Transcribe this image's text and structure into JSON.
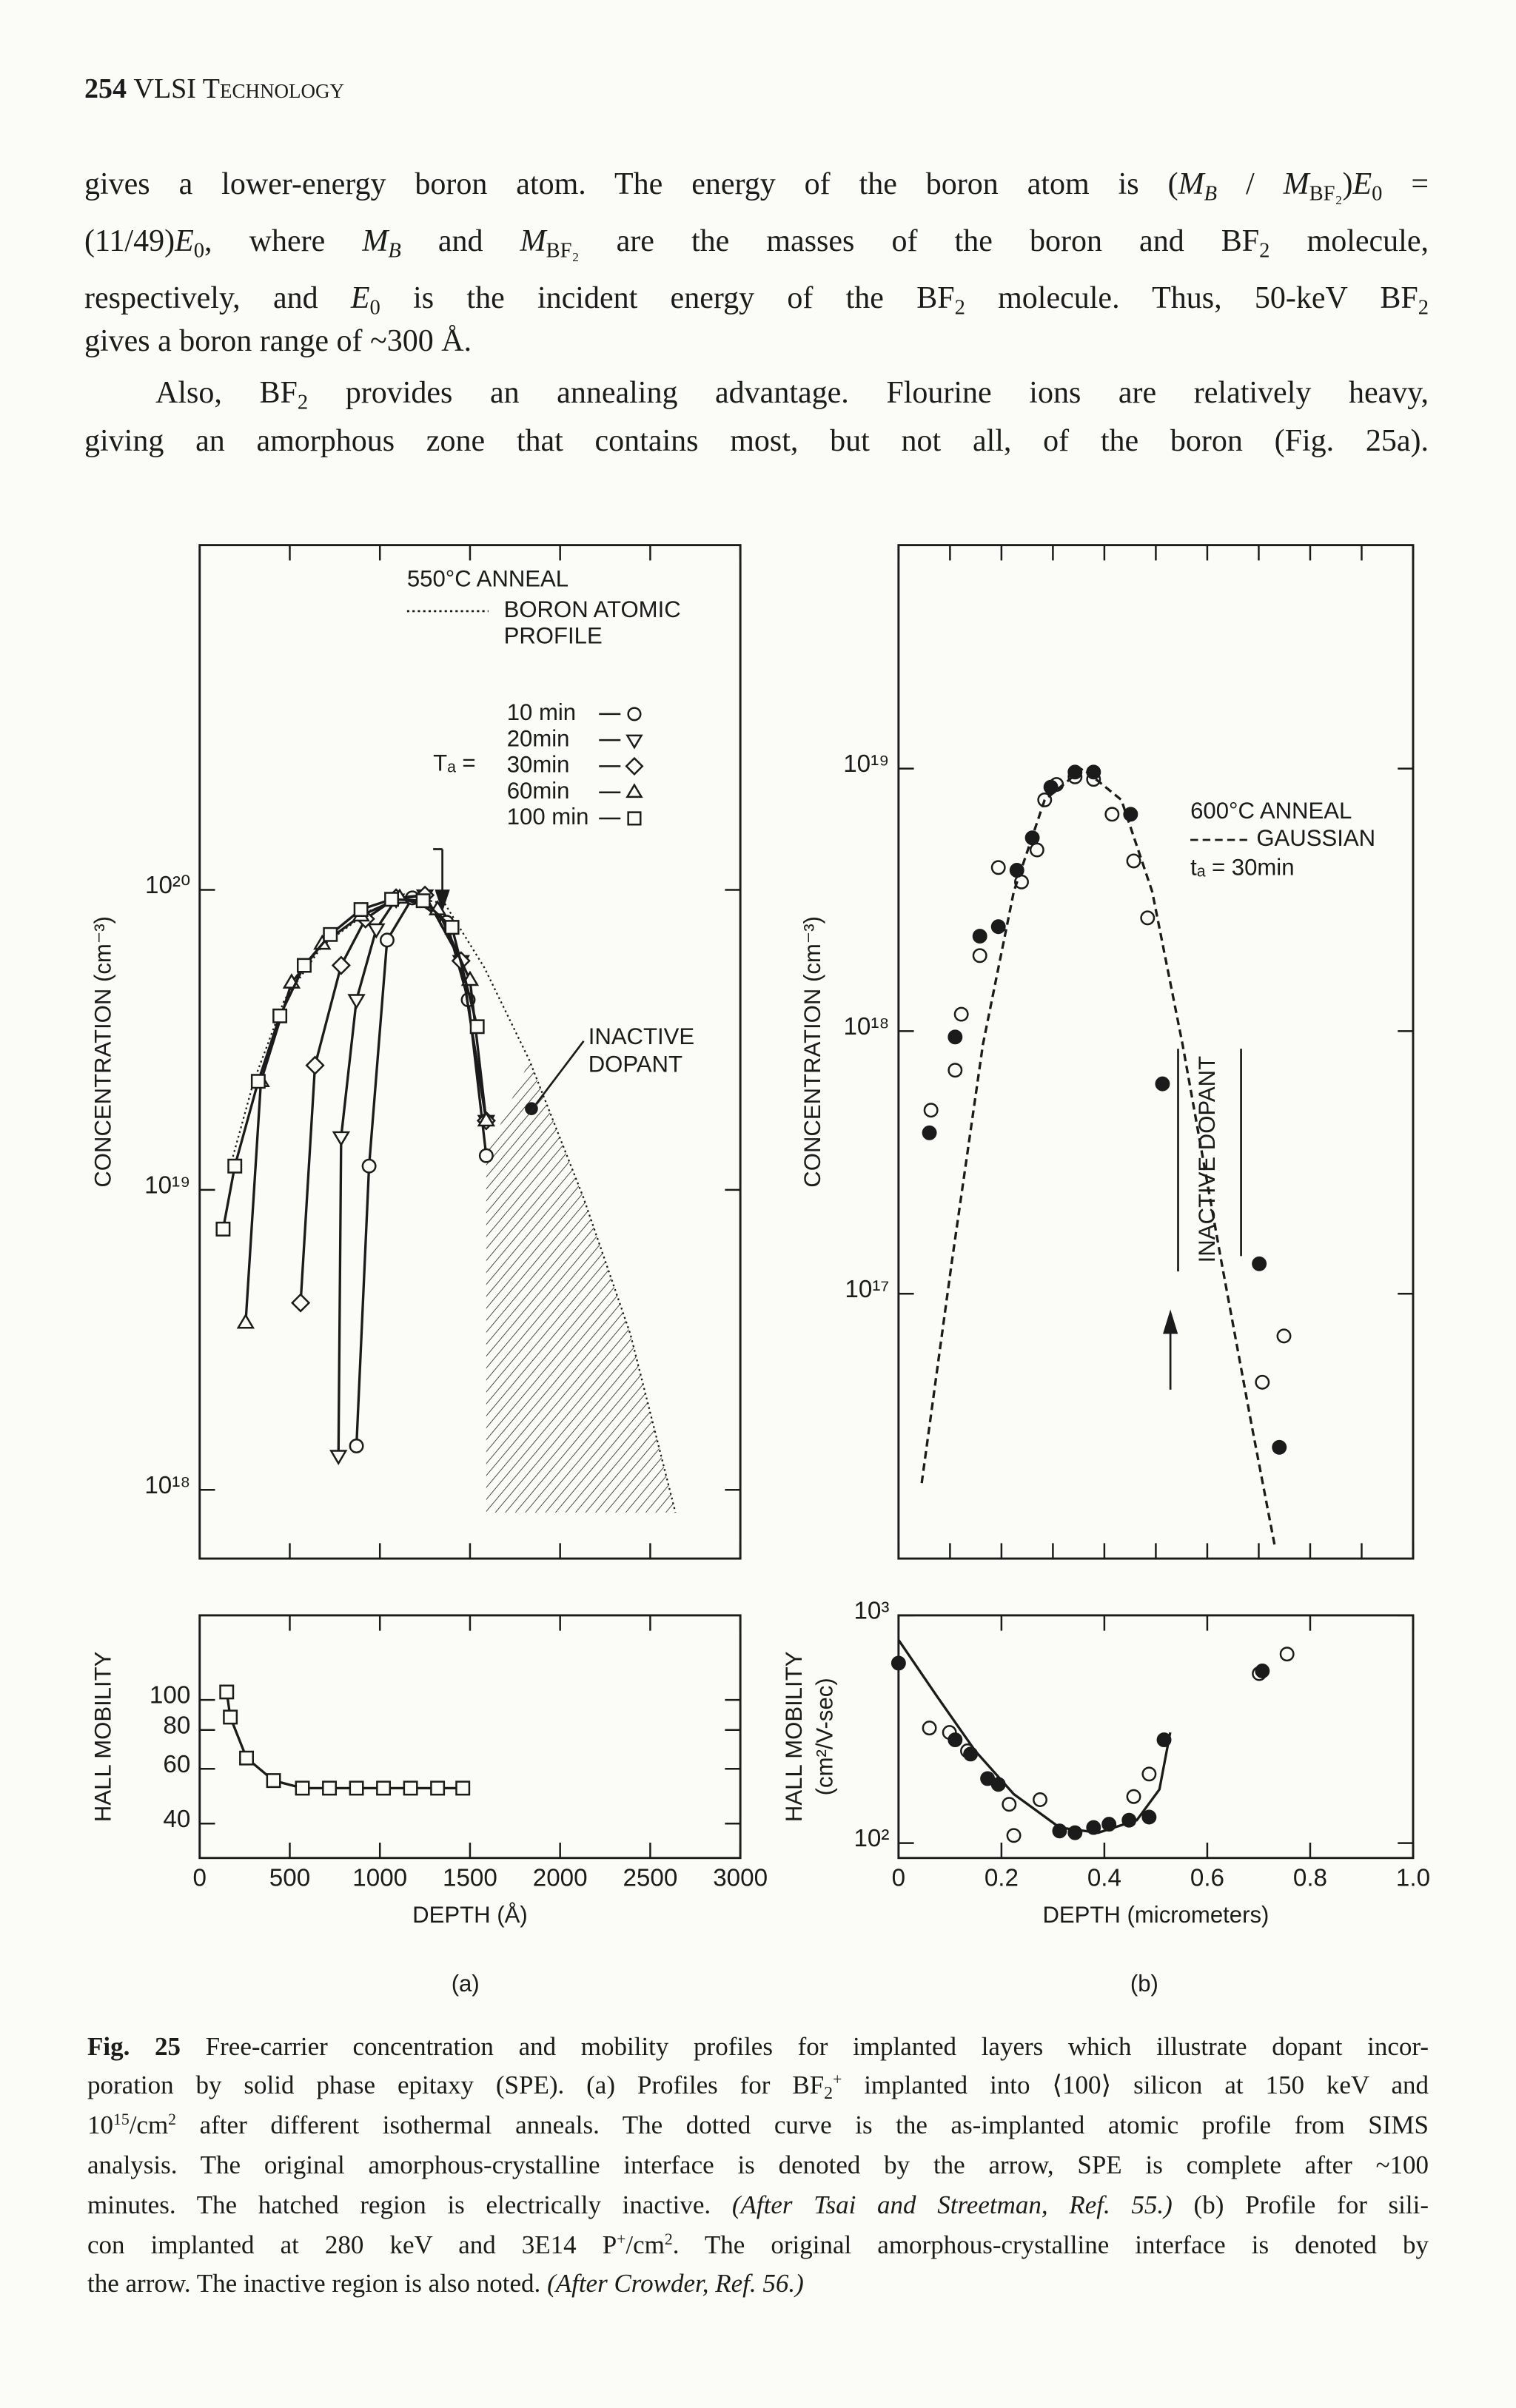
{
  "header": {
    "page": "254",
    "title": "VLSI Technology"
  },
  "body": {
    "lines": [
      [
        "gives a lower-energy boron atom. The energy of the boron atom is (",
        "M",
        "B",
        " / ",
        "M",
        "BF₂",
        ")",
        "E",
        "0",
        " ="
      ],
      [
        "(11/49)",
        "E",
        "0",
        ", where ",
        "M",
        "B",
        " and ",
        "M",
        "BF₂",
        " are the masses of the boron and BF",
        "2",
        " molecule,"
      ],
      [
        "respectively, and ",
        "E",
        "0",
        " is the incident energy of the BF",
        "2",
        " molecule. Thus, 50-keV BF",
        "2"
      ],
      [
        "gives a boron range of ~300 Å."
      ],
      [
        "Also, BF",
        "2",
        " provides an annealing advantage. Flourine ions are relatively heavy,"
      ],
      [
        "giving an amorphous zone that contains most, but not all, of the boron (Fig. 25a)."
      ]
    ]
  },
  "figure": {
    "panel_labels": [
      "(a)",
      "(b)"
    ],
    "charts": [
      {
        "type": "line",
        "ylog": true,
        "xlim": [
          0,
          3000
        ],
        "ylim": [
          5.9e+17,
          1.41e+21
        ],
        "xticks": [
          0,
          500,
          1000,
          1500,
          2000,
          2500,
          3000
        ],
        "yticks": [
          {
            "value": 1e+18,
            "label": "10¹⁸"
          },
          {
            "value": 1e+19,
            "label": "10¹⁹"
          },
          {
            "value": 1e+20,
            "label": "10²⁰"
          }
        ],
        "ylabel": "CONCENTRATION (cm⁻³)",
        "annotations": [
          "550°C ANNEAL",
          "BORON ATOMIC",
          "PROFILE",
          "Tₐ =",
          "INACTIVE",
          "DOPANT"
        ],
        "series": [
          {
            "color": "#1b1b1b",
            "line": "dotted",
            "marker": "none",
            "filled": false,
            "x": [
              170,
              300,
              470,
              680,
              940,
              1150,
              1360,
              1580,
              1830,
              2130,
              2390,
              2640
            ],
            "values": [
              1.2e+19,
              2.3e+19,
              4.3e+19,
              6.5e+19,
              8.5e+19,
              9.5e+19,
              9e+19,
              5.5e+19,
              2.7e+19,
              9.4e+18,
              3.3e+18,
              8.4e+17
            ]
          },
          {
            "name": "10 min",
            "color": "#1b1b1b",
            "line": "solid",
            "marker": "circle",
            "filled": false,
            "x": [
              870,
              940,
              1040,
              1180,
              1370,
              1490,
              1590
            ],
            "values": [
              1.4e+18,
              1.2e+19,
              6.8e+19,
              9.4e+19,
              7.8e+19,
              4.3e+19,
              1.3e+19
            ]
          },
          {
            "name": "20min",
            "color": "#1b1b1b",
            "line": "solid",
            "marker": "tri-down",
            "filled": false,
            "x": [
              770,
              785,
              870,
              980,
              1090,
              1250,
              1450,
              1590
            ],
            "values": [
              1.3e+18,
              1.5e+19,
              4.3e+19,
              7.4e+19,
              9.3e+19,
              9.6e+19,
              5.8e+19,
              1.7e+19
            ]
          },
          {
            "name": "30min",
            "color": "#1b1b1b",
            "line": "solid",
            "marker": "diamond",
            "filled": false,
            "x": [
              560,
              640,
              785,
              920,
              1090,
              1250,
              1450,
              1590
            ],
            "values": [
              4.2e+18,
              2.6e+19,
              5.6e+19,
              8e+19,
              9.4e+19,
              9.6e+19,
              5.8e+19,
              1.7e+19
            ]
          },
          {
            "name": "60min",
            "color": "#1b1b1b",
            "line": "solid",
            "marker": "tri-up",
            "filled": false,
            "x": [
              255,
              340,
              510,
              680,
              895,
              1110,
              1320,
              1500,
              1590
            ],
            "values": [
              3.6e+18,
              2.3e+19,
              4.9e+19,
              6.6e+19,
              8.2e+19,
              9.4e+19,
              8.6e+19,
              5e+19,
              1.7e+19
            ]
          },
          {
            "name": "100 min",
            "color": "#1b1b1b",
            "line": "solid",
            "marker": "square",
            "filled": false,
            "x": [
              130,
              195,
              325,
              445,
              580,
              725,
              895,
              1065,
              1240,
              1400,
              1540
            ],
            "values": [
              7.4e+18,
              1.2e+19,
              2.3e+19,
              3.8e+19,
              5.6e+19,
              7.1e+19,
              8.6e+19,
              9.3e+19,
              9.2e+19,
              7.5e+19,
              3.5e+19
            ]
          }
        ]
      },
      {
        "type": "line",
        "ylog": true,
        "xlim": [
          0,
          3000
        ],
        "ylim": [
          31,
          187
        ],
        "xticks": [
          0,
          500,
          1000,
          1500,
          2000,
          2500,
          3000
        ],
        "yticks": [
          40,
          60,
          80,
          100
        ],
        "xlabel": "DEPTH (Å)",
        "ylabel": "HALL MOBILITY",
        "series": [
          {
            "color": "#1b1b1b",
            "line": "solid",
            "marker": "square",
            "filled": false,
            "x": [
              150,
              170,
              260,
              410,
              570,
              720,
              870,
              1020,
              1170,
              1320,
              1460
            ],
            "values": [
              106,
              88,
              65,
              55,
              52,
              52,
              52,
              52,
              52,
              52,
              52
            ]
          }
        ]
      },
      {
        "type": "scatter",
        "ylog": true,
        "xlim": [
          0,
          1
        ],
        "ylim": [
          9800000000000000.0,
          7.1e+19
        ],
        "xticks": [
          0,
          0.1,
          0.2,
          0.3,
          0.4,
          0.5,
          0.6,
          0.7,
          0.8,
          0.9,
          1
        ],
        "yticks": [
          {
            "value": 1e+17,
            "label": "10¹⁷"
          },
          {
            "value": 1e+18,
            "label": "10¹⁸"
          },
          {
            "value": 1e+19,
            "label": "10¹⁹"
          }
        ],
        "ylabel": "CONCENTRATION (cm⁻³)",
        "annotations": [
          "600°C ANNEAL",
          "tₐ = 30min",
          "INACTIVE DOPANT"
        ],
        "series": [
          {
            "color": "#1b1b1b",
            "line": "none",
            "marker": "circle",
            "filled": false,
            "x": [
              0.063,
              0.11,
              0.122,
              0.158,
              0.194,
              0.239,
              0.269,
              0.284,
              0.307,
              0.343,
              0.379,
              0.415,
              0.457,
              0.484,
              0.707,
              0.749
            ],
            "values": [
              5e+17,
              7.1e+17,
              1.16e+18,
              1.94e+18,
              4.2e+18,
              3.7e+18,
              4.9e+18,
              7.6e+18,
              8.7e+18,
              9.3e+18,
              9.1e+18,
              6.7e+18,
              4.45e+18,
              2.7e+18,
              4.6e+16,
              6.9e+16
            ]
          },
          {
            "color": "#1b1b1b",
            "line": "none",
            "marker": "circle",
            "filled": true,
            "x": [
              0.06,
              0.11,
              0.158,
              0.194,
              0.23,
              0.26,
              0.296,
              0.343,
              0.379,
              0.451,
              0.513,
              0.701,
              0.74
            ],
            "values": [
              4.1e+17,
              9.5e+17,
              2.3e+18,
              2.5e+18,
              4.1e+18,
              5.45e+18,
              8.5e+18,
              9.7e+18,
              9.7e+18,
              6.7e+18,
              6.3e+17,
              1.3e+17,
              2.6e+16
            ]
          },
          {
            "name": "GAUSSIAN",
            "color": "#1b1b1b",
            "line": "dashed",
            "marker": "none",
            "filled": false,
            "x": [
              0.045,
              0.104,
              0.164,
              0.224,
              0.284,
              0.358,
              0.433,
              0.493,
              0.552,
              0.627,
              0.687,
              0.731
            ],
            "values": [
              1.9e+16,
              1.34e+17,
              8.9e+17,
              3.4e+18,
              7.6e+18,
              1e+19,
              7.6e+18,
              3.4e+18,
              8.9e+17,
              1.34e+17,
              3.1e+16,
              1.1e+16
            ]
          }
        ]
      },
      {
        "type": "scatter",
        "ylog": true,
        "xlim": [
          0,
          1
        ],
        "ylim": [
          86,
          1000
        ],
        "xticks": [
          0,
          0.2,
          0.4,
          0.6,
          0.8,
          {
            "value": 1,
            "label": "1.0"
          }
        ],
        "yticks": [
          {
            "value": 100,
            "label": "10²"
          },
          {
            "value": 1000,
            "label": "10³"
          }
        ],
        "xlabel": "DEPTH (micrometers)",
        "ylabel": [
          "HALL MOBILITY",
          "(cm²/V-sec)"
        ],
        "series": [
          {
            "color": "#1b1b1b",
            "line": "none",
            "marker": "circle",
            "filled": false,
            "x": [
              0.06,
              0.099,
              0.134,
              0.215,
              0.224,
              0.275,
              0.457,
              0.487,
              0.701,
              0.755
            ],
            "values": [
              320,
              306,
              254,
              148,
              108,
              155,
              160,
              201,
              555,
              676
            ]
          },
          {
            "color": "#1b1b1b",
            "line": "none",
            "marker": "circle",
            "filled": true,
            "x": [
              0,
              0.11,
              0.14,
              0.173,
              0.194,
              0.313,
              0.343,
              0.379,
              0.409,
              0.448,
              0.487,
              0.516,
              0.707
            ],
            "values": [
              617,
              284,
              246,
              192,
              181,
              113,
              111,
              117,
              121,
              126,
              130,
              284,
              570
            ]
          },
          {
            "color": "#1b1b1b",
            "line": "solid",
            "marker": "none",
            "filled": false,
            "x": [
              0,
              0.075,
              0.149,
              0.224,
              0.313,
              0.388,
              0.463,
              0.507,
              0.528
            ],
            "values": [
              780,
              440,
              254,
              164,
              117,
              111,
              126,
              172,
              306
            ]
          }
        ]
      }
    ]
  },
  "caption": {
    "lines": [
      [
        "Fig. 25",
        " Free-carrier concentration and mobility profiles for implanted layers which illustrate dopant incor-"
      ],
      [
        "poration by solid phase epitaxy (SPE). (a) Profiles for BF",
        "2",
        "+",
        " implanted into ⟨100⟩ silicon at 150 keV and"
      ],
      [
        "10",
        "15",
        "/cm",
        "2",
        " after different isothermal anneals. The dotted curve is the as-implanted atomic profile from SIMS"
      ],
      [
        "analysis. The original amorphous-crystalline interface is denoted by the arrow, SPE is complete after ~100"
      ],
      [
        "minutes. The hatched region is electrically inactive. ",
        "(After Tsai and Streetman, Ref. 55.)",
        " (b) Profile for sili-"
      ],
      [
        "con implanted at 280 keV and 3E14 P",
        "+",
        "/cm",
        "2",
        ". The original amorphous-crystalline interface is denoted by"
      ],
      [
        "the arrow. The inactive region is also noted. ",
        "(After Crowder, Ref. 56.)"
      ]
    ]
  }
}
